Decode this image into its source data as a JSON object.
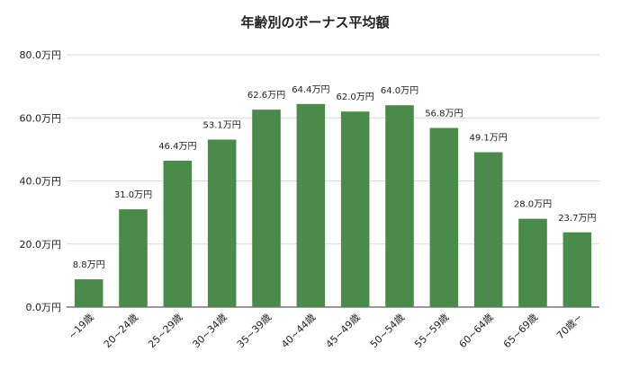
{
  "chart_data": {
    "type": "bar",
    "title": "年齢別のボーナス平均額",
    "xlabel": "",
    "ylabel": "",
    "unit": "万円",
    "categories": [
      "~19歳",
      "20~24歳",
      "25~29歳",
      "30~34歳",
      "35~39歳",
      "40~44歳",
      "45~49歳",
      "50~54歳",
      "55~59歳",
      "60~64歳",
      "65~69歳",
      "70歳~"
    ],
    "values": [
      8.8,
      31.0,
      46.4,
      53.1,
      62.6,
      64.4,
      62.0,
      64.0,
      56.8,
      49.1,
      28.0,
      23.7
    ],
    "data_labels": [
      "8.8万円",
      "31.0万円",
      "46.4万円",
      "53.1万円",
      "62.6万円",
      "64.4万円",
      "62.0万円",
      "64.0万円",
      "56.8万円",
      "49.1万円",
      "28.0万円",
      "23.7万円"
    ],
    "yticks": [
      0,
      20,
      40,
      60,
      80
    ],
    "ytick_labels": [
      "0.0万円",
      "20.0万円",
      "40.0万円",
      "60.0万円",
      "80.0万円"
    ],
    "ylim": [
      0,
      80
    ],
    "grid": true,
    "legend": "none",
    "bar_color": "#4a8a4a",
    "grid_color": "#d9d9d9"
  }
}
